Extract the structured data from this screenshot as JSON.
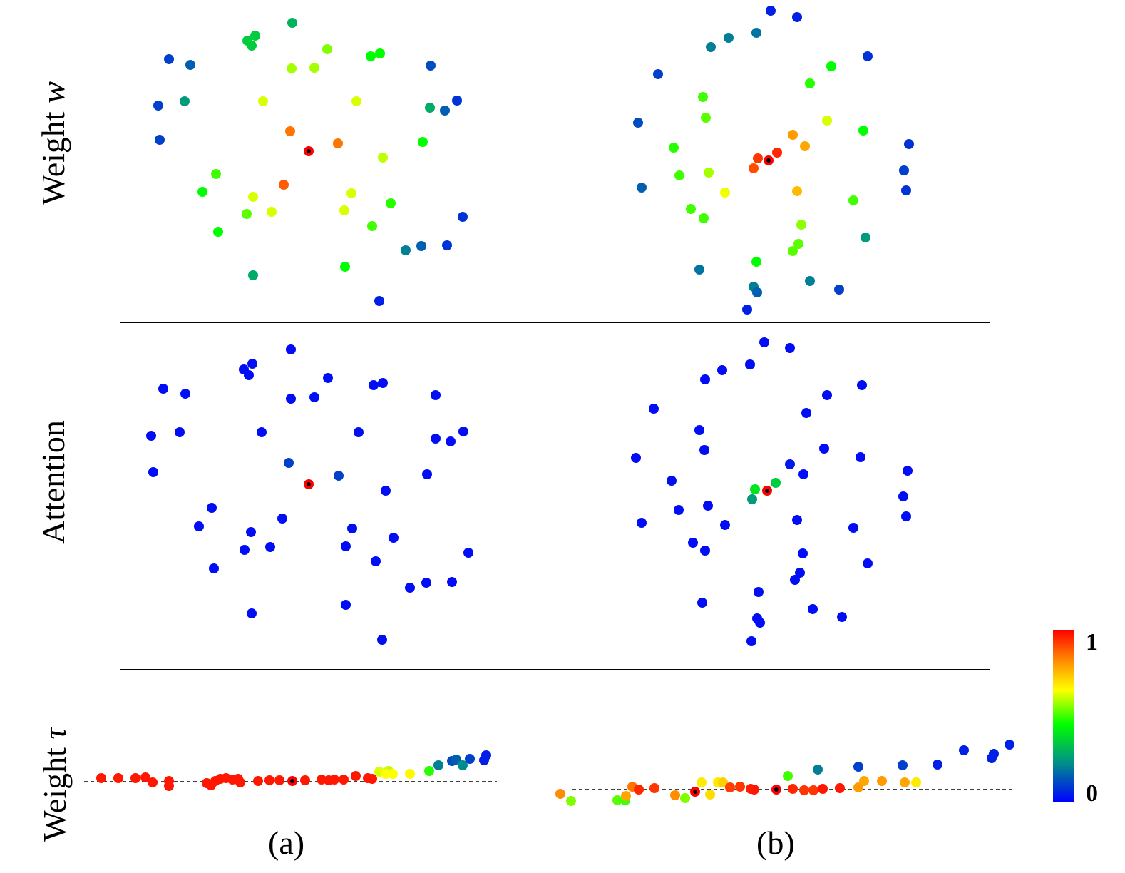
{
  "chart_data": {
    "type": "scatter",
    "row_labels": {
      "weight_w": "Weight w",
      "attention": "Attention",
      "weight_tau": "Weight τ"
    },
    "panel_labels": [
      "(a)",
      "(b)"
    ],
    "colorbar": {
      "max_label": "1",
      "min_label": "0",
      "colors": [
        "#0000ff",
        "#008c8c",
        "#00ff00",
        "#ffff00",
        "#ff8c00",
        "#ff0000"
      ]
    },
    "panels": [
      {
        "weight_w": [
          [
            410,
            32,
            0.3
          ],
          [
            347,
            57,
            0.35
          ],
          [
            358,
            50,
            0.35
          ],
          [
            353,
            64,
            0.35
          ],
          [
            459,
            69,
            0.55
          ],
          [
            520,
            79,
            0.45
          ],
          [
            533,
            75,
            0.45
          ],
          [
            409,
            96,
            0.58
          ],
          [
            441,
            95,
            0.58
          ],
          [
            237,
            83,
            0.1
          ],
          [
            267,
            91,
            0.15
          ],
          [
            604,
            92,
            0.12
          ],
          [
            259,
            142,
            0.25
          ],
          [
            222,
            148,
            0.1
          ],
          [
            369,
            142,
            0.62
          ],
          [
            500,
            142,
            0.62
          ],
          [
            603,
            151,
            0.28
          ],
          [
            624,
            155,
            0.15
          ],
          [
            641,
            141,
            0.08
          ],
          [
            224,
            196,
            0.1
          ],
          [
            407,
            184,
            0.85
          ],
          [
            474,
            201,
            0.85
          ],
          [
            593,
            199,
            0.45
          ],
          [
            537,
            221,
            0.6
          ],
          [
            433,
            212,
            1.0
          ],
          [
            303,
            244,
            0.5
          ],
          [
            398,
            259,
            0.88
          ],
          [
            284,
            269,
            0.45
          ],
          [
            355,
            276,
            0.62
          ],
          [
            493,
            271,
            0.62
          ],
          [
            346,
            300,
            0.52
          ],
          [
            381,
            297,
            0.62
          ],
          [
            483,
            295,
            0.62
          ],
          [
            548,
            285,
            0.48
          ],
          [
            649,
            304,
            0.08
          ],
          [
            306,
            325,
            0.45
          ],
          [
            522,
            317,
            0.5
          ],
          [
            569,
            351,
            0.2
          ],
          [
            591,
            345,
            0.15
          ],
          [
            627,
            344,
            0.08
          ],
          [
            355,
            386,
            0.28
          ],
          [
            484,
            374,
            0.45
          ],
          [
            532,
            422,
            0.05
          ]
        ],
        "attention": [
          [
            408,
            490,
            0.02
          ],
          [
            342,
            518,
            0.02
          ],
          [
            354,
            510,
            0.02
          ],
          [
            349,
            526,
            0.02
          ],
          [
            460,
            530,
            0.02
          ],
          [
            524,
            540,
            0.02
          ],
          [
            537,
            537,
            0.02
          ],
          [
            408,
            559,
            0.02
          ],
          [
            441,
            557,
            0.02
          ],
          [
            229,
            545,
            0.02
          ],
          [
            260,
            552,
            0.02
          ],
          [
            611,
            554,
            0.02
          ],
          [
            252,
            606,
            0.02
          ],
          [
            212,
            611,
            0.02
          ],
          [
            367,
            606,
            0.02
          ],
          [
            503,
            606,
            0.02
          ],
          [
            611,
            615,
            0.02
          ],
          [
            632,
            619,
            0.02
          ],
          [
            650,
            605,
            0.02
          ],
          [
            215,
            662,
            0.02
          ],
          [
            405,
            649,
            0.1
          ],
          [
            475,
            667,
            0.1
          ],
          [
            599,
            665,
            0.02
          ],
          [
            541,
            688,
            0.02
          ],
          [
            433,
            679,
            1.0
          ],
          [
            297,
            712,
            0.02
          ],
          [
            396,
            727,
            0.02
          ],
          [
            279,
            738,
            0.02
          ],
          [
            352,
            746,
            0.02
          ],
          [
            494,
            741,
            0.02
          ],
          [
            343,
            771,
            0.02
          ],
          [
            379,
            767,
            0.02
          ],
          [
            485,
            766,
            0.02
          ],
          [
            552,
            754,
            0.02
          ],
          [
            657,
            775,
            0.02
          ],
          [
            300,
            797,
            0.02
          ],
          [
            527,
            787,
            0.02
          ],
          [
            575,
            824,
            0.02
          ],
          [
            598,
            817,
            0.02
          ],
          [
            634,
            816,
            0.02
          ],
          [
            353,
            860,
            0.02
          ],
          [
            485,
            848,
            0.02
          ],
          [
            536,
            897,
            0.02
          ]
        ],
        "weight_tau": [
          [
            142,
            1091,
            0.97
          ],
          [
            166,
            1091,
            0.97
          ],
          [
            190,
            1091,
            0.97
          ],
          [
            204,
            1090,
            0.97
          ],
          [
            214,
            1097,
            0.97
          ],
          [
            237,
            1095,
            0.97
          ],
          [
            237,
            1102,
            0.97
          ],
          [
            290,
            1098,
            0.97
          ],
          [
            296,
            1101,
            0.97
          ],
          [
            302,
            1095,
            0.97
          ],
          [
            309,
            1092,
            0.97
          ],
          [
            317,
            1091,
            0.97
          ],
          [
            326,
            1093,
            0.97
          ],
          [
            334,
            1092,
            0.97
          ],
          [
            337,
            1097,
            0.97
          ],
          [
            362,
            1095,
            0.97
          ],
          [
            378,
            1094,
            0.97
          ],
          [
            392,
            1094,
            0.97
          ],
          [
            410,
            1095,
            1.0
          ],
          [
            428,
            1094,
            0.97
          ],
          [
            451,
            1093,
            0.97
          ],
          [
            461,
            1094,
            0.97
          ],
          [
            469,
            1093,
            0.97
          ],
          [
            482,
            1093,
            0.97
          ],
          [
            499,
            1088,
            0.97
          ],
          [
            516,
            1091,
            0.97
          ],
          [
            522,
            1092,
            0.97
          ],
          [
            532,
            1082,
            0.62
          ],
          [
            545,
            1081,
            0.6
          ],
          [
            541,
            1085,
            0.65
          ],
          [
            551,
            1085,
            0.65
          ],
          [
            575,
            1085,
            0.66
          ],
          [
            602,
            1081,
            0.48
          ],
          [
            615,
            1073,
            0.2
          ],
          [
            634,
            1067,
            0.12
          ],
          [
            640,
            1065,
            0.15
          ],
          [
            649,
            1073,
            0.22
          ],
          [
            659,
            1064,
            0.1
          ],
          [
            679,
            1066,
            0.05
          ],
          [
            682,
            1059,
            0.05
          ]
        ]
      },
      {
        "weight_w": [
          [
            1081,
            15,
            0.05
          ],
          [
            1118,
            24,
            0.05
          ],
          [
            1061,
            46,
            0.18
          ],
          [
            1022,
            53,
            0.2
          ],
          [
            997,
            66,
            0.2
          ],
          [
            1217,
            79,
            0.08
          ],
          [
            1166,
            93,
            0.45
          ],
          [
            923,
            104,
            0.1
          ],
          [
            1136,
            117,
            0.48
          ],
          [
            986,
            136,
            0.5
          ],
          [
            990,
            165,
            0.52
          ],
          [
            1160,
            169,
            0.62
          ],
          [
            895,
            172,
            0.12
          ],
          [
            1211,
            183,
            0.45
          ],
          [
            1112,
            189,
            0.8
          ],
          [
            1129,
            205,
            0.78
          ],
          [
            1275,
            202,
            0.08
          ],
          [
            945,
            207,
            0.48
          ],
          [
            1090,
            214,
            0.95
          ],
          [
            1063,
            222,
            0.93
          ],
          [
            1078,
            225,
            1.0
          ],
          [
            1057,
            236,
            0.9
          ],
          [
            1268,
            239,
            0.1
          ],
          [
            953,
            246,
            0.5
          ],
          [
            994,
            242,
            0.58
          ],
          [
            1017,
            270,
            0.64
          ],
          [
            1118,
            268,
            0.75
          ],
          [
            900,
            263,
            0.15
          ],
          [
            1271,
            267,
            0.08
          ],
          [
            1197,
            281,
            0.5
          ],
          [
            969,
            293,
            0.5
          ],
          [
            987,
            306,
            0.5
          ],
          [
            1124,
            315,
            0.56
          ],
          [
            1214,
            333,
            0.25
          ],
          [
            1120,
            342,
            0.52
          ],
          [
            1112,
            352,
            0.52
          ],
          [
            1061,
            367,
            0.45
          ],
          [
            981,
            378,
            0.18
          ],
          [
            1136,
            394,
            0.2
          ],
          [
            1057,
            402,
            0.2
          ],
          [
            1177,
            406,
            0.1
          ],
          [
            1062,
            410,
            0.15
          ],
          [
            1048,
            434,
            0.05
          ]
        ],
        "attention": [
          [
            1072,
            480,
            0.02
          ],
          [
            1108,
            488,
            0.02
          ],
          [
            1052,
            511,
            0.02
          ],
          [
            1013,
            519,
            0.02
          ],
          [
            989,
            532,
            0.02
          ],
          [
            1209,
            540,
            0.02
          ],
          [
            1160,
            554,
            0.02
          ],
          [
            917,
            573,
            0.02
          ],
          [
            1131,
            579,
            0.02
          ],
          [
            981,
            603,
            0.02
          ],
          [
            988,
            631,
            0.02
          ],
          [
            1156,
            629,
            0.02
          ],
          [
            892,
            642,
            0.02
          ],
          [
            1207,
            641,
            0.02
          ],
          [
            1108,
            651,
            0.04
          ],
          [
            1127,
            665,
            0.02
          ],
          [
            1273,
            660,
            0.02
          ],
          [
            942,
            674,
            0.02
          ],
          [
            1088,
            677,
            0.35
          ],
          [
            1059,
            686,
            0.4
          ],
          [
            1076,
            688,
            1.0
          ],
          [
            1055,
            700,
            0.25
          ],
          [
            1267,
            696,
            0.02
          ],
          [
            952,
            715,
            0.02
          ],
          [
            993,
            709,
            0.02
          ],
          [
            1017,
            736,
            0.02
          ],
          [
            1118,
            729,
            0.02
          ],
          [
            900,
            733,
            0.02
          ],
          [
            1271,
            724,
            0.02
          ],
          [
            1197,
            740,
            0.02
          ],
          [
            972,
            761,
            0.02
          ],
          [
            989,
            772,
            0.02
          ],
          [
            1126,
            776,
            0.02
          ],
          [
            1217,
            790,
            0.02
          ],
          [
            1122,
            803,
            0.02
          ],
          [
            1115,
            813,
            0.02
          ],
          [
            1064,
            830,
            0.02
          ],
          [
            985,
            845,
            0.02
          ],
          [
            1140,
            854,
            0.02
          ],
          [
            1062,
            867,
            0.02
          ],
          [
            1181,
            865,
            0.02
          ],
          [
            1066,
            873,
            0.02
          ],
          [
            1054,
            899,
            0.02
          ]
        ],
        "weight_tau": [
          [
            786,
            1113,
            0.82
          ],
          [
            801,
            1123,
            0.55
          ],
          [
            866,
            1122,
            0.52
          ],
          [
            877,
            1122,
            0.5
          ],
          [
            878,
            1116,
            0.78
          ],
          [
            887,
            1103,
            0.85
          ],
          [
            896,
            1107,
            0.95
          ],
          [
            918,
            1105,
            0.93
          ],
          [
            947,
            1115,
            0.82
          ],
          [
            961,
            1119,
            0.55
          ],
          [
            975,
            1110,
            1.0
          ],
          [
            984,
            1097,
            0.68
          ],
          [
            996,
            1114,
            0.7
          ],
          [
            1007,
            1097,
            0.68
          ],
          [
            1014,
            1097,
            0.72
          ],
          [
            1024,
            1104,
            0.92
          ],
          [
            1038,
            1103,
            0.93
          ],
          [
            1053,
            1106,
            0.96
          ],
          [
            1058,
            1107,
            0.97
          ],
          [
            1089,
            1107,
            1.0
          ],
          [
            1105,
            1088,
            0.5
          ],
          [
            1112,
            1106,
            0.95
          ],
          [
            1128,
            1108,
            0.93
          ],
          [
            1141,
            1108,
            0.93
          ],
          [
            1147,
            1079,
            0.2
          ],
          [
            1154,
            1106,
            0.97
          ],
          [
            1178,
            1105,
            0.97
          ],
          [
            1204,
            1075,
            0.1
          ],
          [
            1204,
            1104,
            0.8
          ],
          [
            1212,
            1095,
            0.78
          ],
          [
            1237,
            1095,
            0.8
          ],
          [
            1266,
            1073,
            0.1
          ],
          [
            1269,
            1097,
            0.78
          ],
          [
            1285,
            1097,
            0.68
          ],
          [
            1315,
            1072,
            0.05
          ],
          [
            1352,
            1052,
            0.05
          ],
          [
            1394,
            1057,
            0.05
          ],
          [
            1391,
            1063,
            0.05
          ],
          [
            1416,
            1044,
            0.05
          ]
        ]
      }
    ],
    "tau_baselines": {
      "a_y": 1096,
      "b_y": 1107
    }
  }
}
